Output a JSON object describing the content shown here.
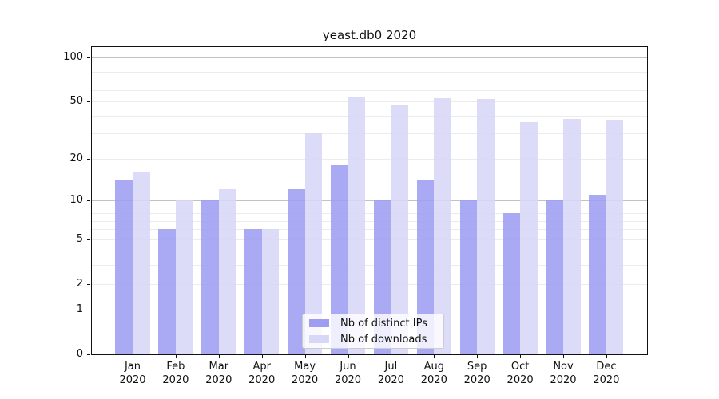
{
  "title": "yeast.db0 2020",
  "chart_data": {
    "type": "bar",
    "title": "yeast.db0 2020",
    "categories": [
      "Jan",
      "Feb",
      "Mar",
      "Apr",
      "May",
      "Jun",
      "Jul",
      "Aug",
      "Sep",
      "Oct",
      "Nov",
      "Dec"
    ],
    "category_year": "2020",
    "series": [
      {
        "name": "Nb of distinct IPs",
        "color": "#9d9df2",
        "values": [
          14,
          6,
          10,
          6,
          12,
          18,
          10,
          14,
          10,
          8,
          10,
          11
        ]
      },
      {
        "name": "Nb of downloads",
        "color": "#d7d7f8",
        "values": [
          16,
          10,
          12,
          6,
          30,
          54,
          47,
          53,
          52,
          36,
          38,
          37
        ]
      }
    ],
    "xlabel": "",
    "ylabel": "",
    "yscale": "symlog-log1p",
    "ylim": [
      0,
      118
    ],
    "yticks": [
      0,
      1,
      2,
      5,
      10,
      20,
      50,
      100
    ],
    "major_gridlines": [
      1,
      10,
      100
    ],
    "minor_gridlines": [
      2,
      3,
      4,
      5,
      6,
      7,
      8,
      9,
      20,
      30,
      40,
      50,
      60,
      70,
      80,
      90
    ],
    "grid": "on",
    "legend_position": "lower-center-inside"
  },
  "legend": {
    "items": [
      "Nb of distinct IPs",
      "Nb of downloads"
    ]
  },
  "colors": {
    "bar_distinct_ips": "#9d9df2",
    "bar_downloads": "#d7d7f8",
    "major_grid": "#c2c2c2",
    "minor_grid": "#ececec",
    "axis": "#111111",
    "background": "#ffffff"
  }
}
